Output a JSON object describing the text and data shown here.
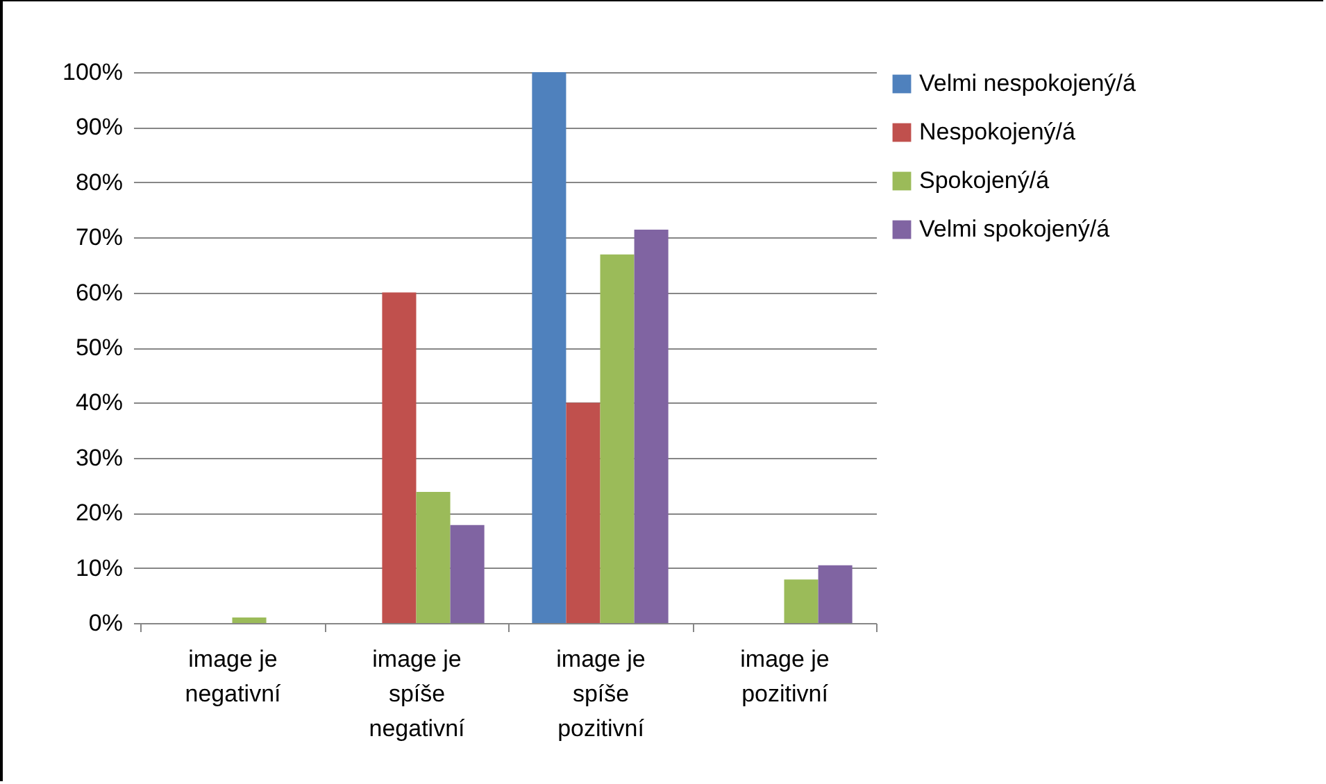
{
  "chart_data": {
    "type": "bar",
    "categories": [
      "image je negativní",
      "image je spíše negativní",
      "image je spíše pozitivní",
      "image je pozitivní"
    ],
    "series": [
      {
        "name": "Velmi nespokojený/á",
        "color": "#4f81bd",
        "values": [
          0,
          0,
          100,
          0
        ]
      },
      {
        "name": "Nespokojený/á",
        "color": "#c0504d",
        "values": [
          0,
          60,
          40,
          0
        ]
      },
      {
        "name": "Spokojený/á",
        "color": "#9bbb59",
        "values": [
          1,
          23.8,
          66.9,
          7.9
        ]
      },
      {
        "name": "Velmi spokojený/á",
        "color": "#8064a2",
        "values": [
          0,
          17.8,
          71.4,
          10.5
        ]
      }
    ],
    "ylim": [
      0,
      100
    ],
    "yticks": [
      {
        "value": 0,
        "label": "0%"
      },
      {
        "value": 10,
        "label": "10%"
      },
      {
        "value": 20,
        "label": "20%"
      },
      {
        "value": 30,
        "label": "30%"
      },
      {
        "value": 40,
        "label": "40%"
      },
      {
        "value": 50,
        "label": "50%"
      },
      {
        "value": 60,
        "label": "60%"
      },
      {
        "value": 70,
        "label": "70%"
      },
      {
        "value": 80,
        "label": "80%"
      },
      {
        "value": 90,
        "label": "90%"
      },
      {
        "value": 100,
        "label": "100%"
      }
    ],
    "grid": "y",
    "legend": "right"
  }
}
